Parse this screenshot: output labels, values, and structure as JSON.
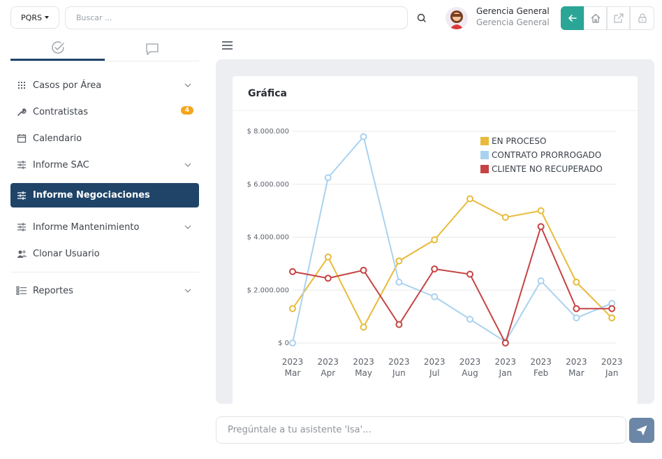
{
  "topbar": {
    "module_label": "PQRS",
    "search_placeholder": "Buscar ...",
    "user_name": "Gerencia General",
    "user_role": "Gerencia General"
  },
  "sidebar": {
    "items": [
      {
        "label": "Casos por Área",
        "icon": "grid-icon",
        "chevron": true
      },
      {
        "label": "Contratistas",
        "icon": "wrench-icon",
        "badge": "4"
      },
      {
        "label": "Calendario",
        "icon": "calendar-icon"
      },
      {
        "label": "Informe SAC",
        "icon": "sliders-icon",
        "chevron": true
      },
      {
        "label": "Informe Negociaciones",
        "icon": "sliders-icon",
        "active": true
      },
      {
        "label": "Informe Mantenimiento",
        "icon": "sliders-icon",
        "chevron": true
      },
      {
        "label": "Clonar Usuario",
        "icon": "users-icon"
      },
      {
        "label": "Reportes",
        "icon": "list-icon",
        "chevron": true
      }
    ],
    "badge_color": "#f4a51c",
    "active_color": "#1f4468"
  },
  "card": {
    "title": "Gráfica"
  },
  "chat": {
    "placeholder": "Pregúntale a tu asistente 'Isa'..."
  },
  "chart_data": {
    "type": "line",
    "categories": [
      "2023 Mar",
      "2023 Apr",
      "2023 May",
      "2023 Jun",
      "2023 Jul",
      "2023 Aug",
      "2023 Jan",
      "2023 Feb",
      "2023 Mar",
      "2023 Jan"
    ],
    "y_ticks": [
      "$ 0",
      "$ 2.000.000",
      "$ 4.000.000",
      "$ 6.000.000",
      "$ 8.000.000"
    ],
    "ylim": [
      0,
      8000000
    ],
    "grid": true,
    "legend_position": "top-right",
    "series": [
      {
        "name": "EN PROCESO",
        "color": "#e8bb3a",
        "values": [
          1300000,
          3250000,
          600000,
          3100000,
          3900000,
          5450000,
          4750000,
          5000000,
          2300000,
          950000
        ]
      },
      {
        "name": "CONTRATO PRORROGADO",
        "color": "#a9d2ef",
        "values": [
          0,
          6250000,
          7800000,
          2300000,
          1750000,
          900000,
          50000,
          2350000,
          950000,
          1500000
        ]
      },
      {
        "name": "CLIENTE NO RECUPERADO",
        "color": "#c64343",
        "values": [
          2700000,
          2450000,
          2750000,
          700000,
          2800000,
          2600000,
          0,
          4400000,
          1300000,
          1300000
        ]
      }
    ]
  }
}
